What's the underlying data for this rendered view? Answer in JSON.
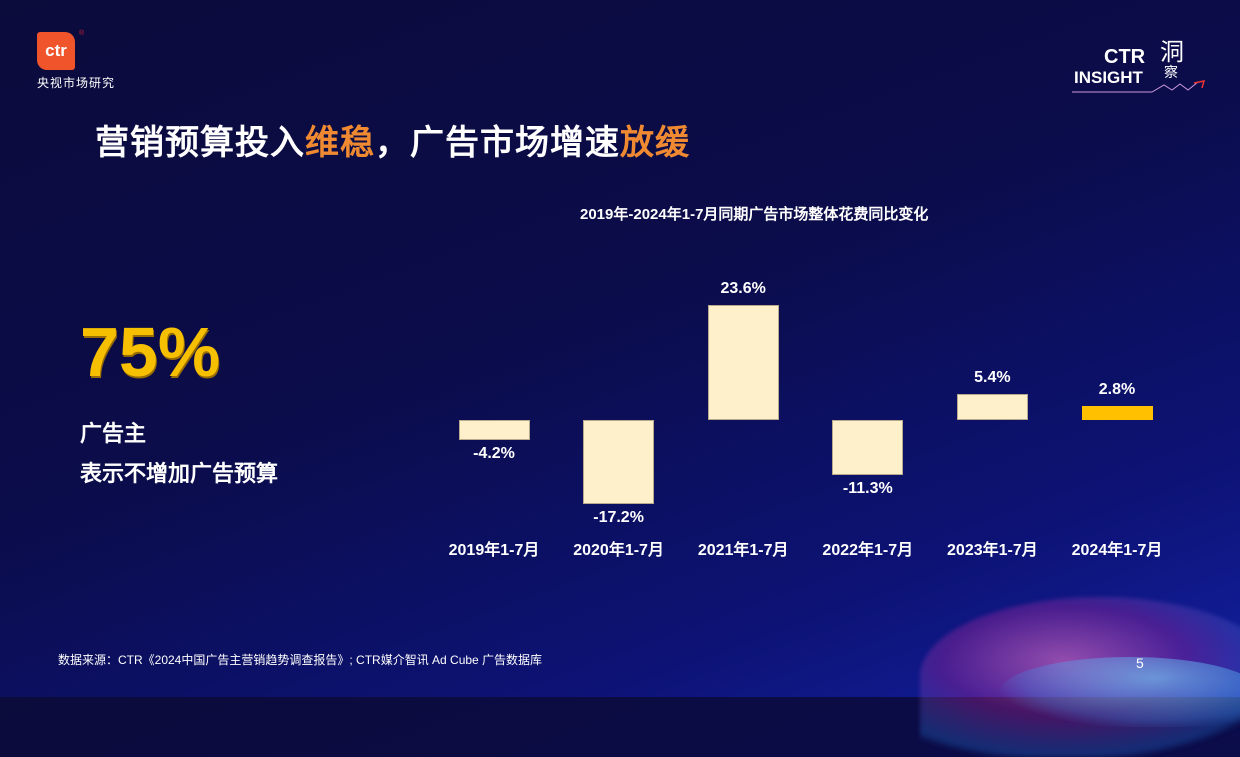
{
  "header": {
    "logo_text": "ctr",
    "logo_reg": "®",
    "logo_subtitle": "央视市场研究",
    "brand": {
      "ctr": "CTR",
      "insight": "INSIGHT",
      "cn_top": "洞",
      "cn_bottom": "察"
    }
  },
  "title": {
    "part1": "营销预算投入",
    "hl1": "维稳",
    "part2": "，广告市场增速",
    "hl2": "放缓"
  },
  "highlight": {
    "value": "75%",
    "line1": "广告主",
    "line2": "表示不增加广告预算"
  },
  "colors": {
    "bar": "#fff0cc",
    "bar_highlight": "#ffc000",
    "accent": "#f08a32",
    "big_number": "#f6c000"
  },
  "chart_data": {
    "type": "bar",
    "title": "2019年-2024年1-7月同期广告市场整体花费同比变化",
    "categories": [
      "2019年1-7月",
      "2020年1-7月",
      "2021年1-7月",
      "2022年1-7月",
      "2023年1-7月",
      "2024年1-7月"
    ],
    "values": [
      -4.2,
      -17.2,
      23.6,
      -11.3,
      5.4,
      2.8
    ],
    "labels": [
      "-4.2%",
      "-17.2%",
      "23.6%",
      "-11.3%",
      "5.4%",
      "2.8%"
    ],
    "xlabel": "",
    "ylabel": "",
    "unit": "%",
    "grid": false,
    "legend": "none",
    "highlight_index": 5
  },
  "footer": {
    "source": "数据来源：CTR《2024中国广告主营销趋势调查报告》; CTR媒介智讯 Ad Cube 广告数据库",
    "page_number": "5"
  }
}
